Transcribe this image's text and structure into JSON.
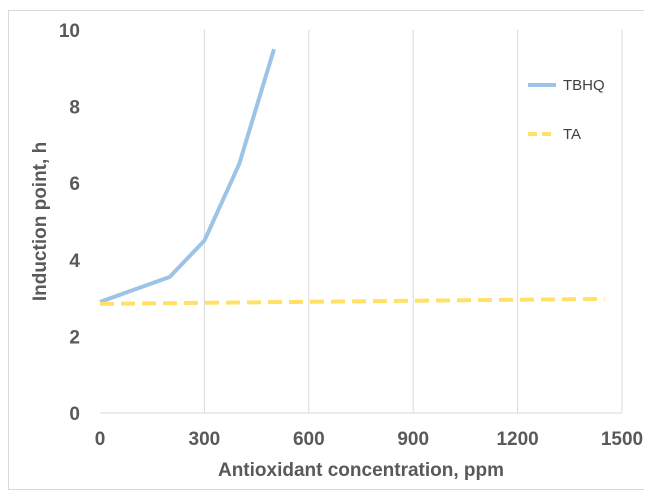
{
  "chart_data": {
    "type": "line",
    "xlabel": "Antioxidant concentration, ppm",
    "ylabel": "Induction point, h",
    "xlim": [
      0,
      1500
    ],
    "ylim": [
      0,
      10
    ],
    "xticks": [
      0,
      300,
      600,
      900,
      1200,
      1500
    ],
    "yticks": [
      0,
      2,
      4,
      6,
      8,
      10
    ],
    "grid": "vertical",
    "legend_position": "right",
    "series": [
      {
        "name": "TBHQ",
        "color": "#9dc3e6",
        "style": "solid",
        "x": [
          0,
          200,
          300,
          400,
          500
        ],
        "y": [
          2.9,
          3.55,
          4.5,
          6.5,
          9.5
        ]
      },
      {
        "name": "TA",
        "color": "#ffe167",
        "style": "dashed",
        "x": [
          0,
          1450
        ],
        "y": [
          2.85,
          2.98
        ]
      }
    ]
  }
}
